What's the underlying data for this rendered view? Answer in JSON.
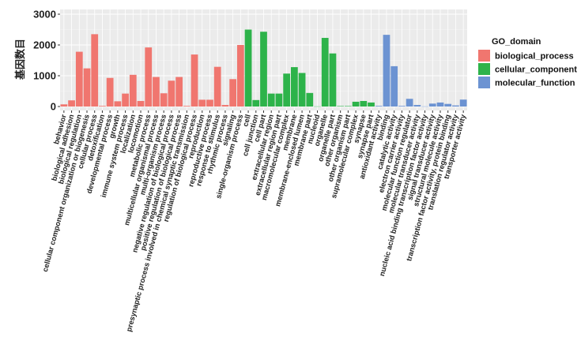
{
  "chart_data": {
    "type": "bar",
    "ylabel": "基因数目",
    "ylim": [
      0,
      3100
    ],
    "yticks": [
      0,
      1000,
      2000,
      3000
    ],
    "grid": true,
    "legend": {
      "title": "GO_domain",
      "position": "right"
    },
    "series": [
      {
        "name": "biological_process",
        "color": "#F0766F",
        "categories": [
          "behavior",
          "biological adhesion",
          "biological regulation",
          "cellular component organization or biogenesis",
          "cellular process",
          "detoxification",
          "developmental process",
          "growth",
          "immune system process",
          "localization",
          "locomotion",
          "metabolic process",
          "multicellular organismal process",
          "multi-organism process",
          "negative regulation of biological process",
          "positive regulation of biological process",
          "presynaptic process involved in chemical synaptic transmission",
          "regulation of biological process",
          "reproduction",
          "reproductive process",
          "response to stimulus",
          "rhythmic process",
          "signaling",
          "single-organism process"
        ],
        "values": [
          70,
          200,
          1780,
          1240,
          2350,
          20,
          930,
          170,
          420,
          1030,
          180,
          1920,
          960,
          430,
          840,
          960,
          20,
          1690,
          220,
          220,
          1290,
          50,
          890,
          2000
        ]
      },
      {
        "name": "cellular_component",
        "color": "#2DB34A",
        "categories": [
          "cell",
          "cell junction",
          "cell part",
          "extracellular region",
          "extracellular region part",
          "macromolecular complex",
          "membrane",
          "membrane-enclosed lumen",
          "membrane part",
          "nucleoid",
          "organelle",
          "organelle part",
          "other organism",
          "other organism part",
          "supramolecular complex",
          "synapse",
          "synapse part"
        ],
        "values": [
          2500,
          210,
          2430,
          420,
          420,
          1070,
          1280,
          1090,
          440,
          5,
          2230,
          1725,
          15,
          15,
          155,
          180,
          130
        ]
      },
      {
        "name": "molecular_function",
        "color": "#6C93D2",
        "categories": [
          "antioxidant activity",
          "binding",
          "catalytic activity",
          "electron carrier activity",
          "molecular function regulator",
          "molecular transducer activity",
          "nucleic acid binding transcription factor activity",
          "signal transducer activity",
          "structural molecule activity",
          "transcription factor activity, protein binding",
          "translation regulator activity",
          "transporter activity"
        ],
        "values": [
          20,
          2330,
          1310,
          20,
          250,
          50,
          5,
          95,
          130,
          85,
          35,
          225
        ]
      }
    ]
  }
}
